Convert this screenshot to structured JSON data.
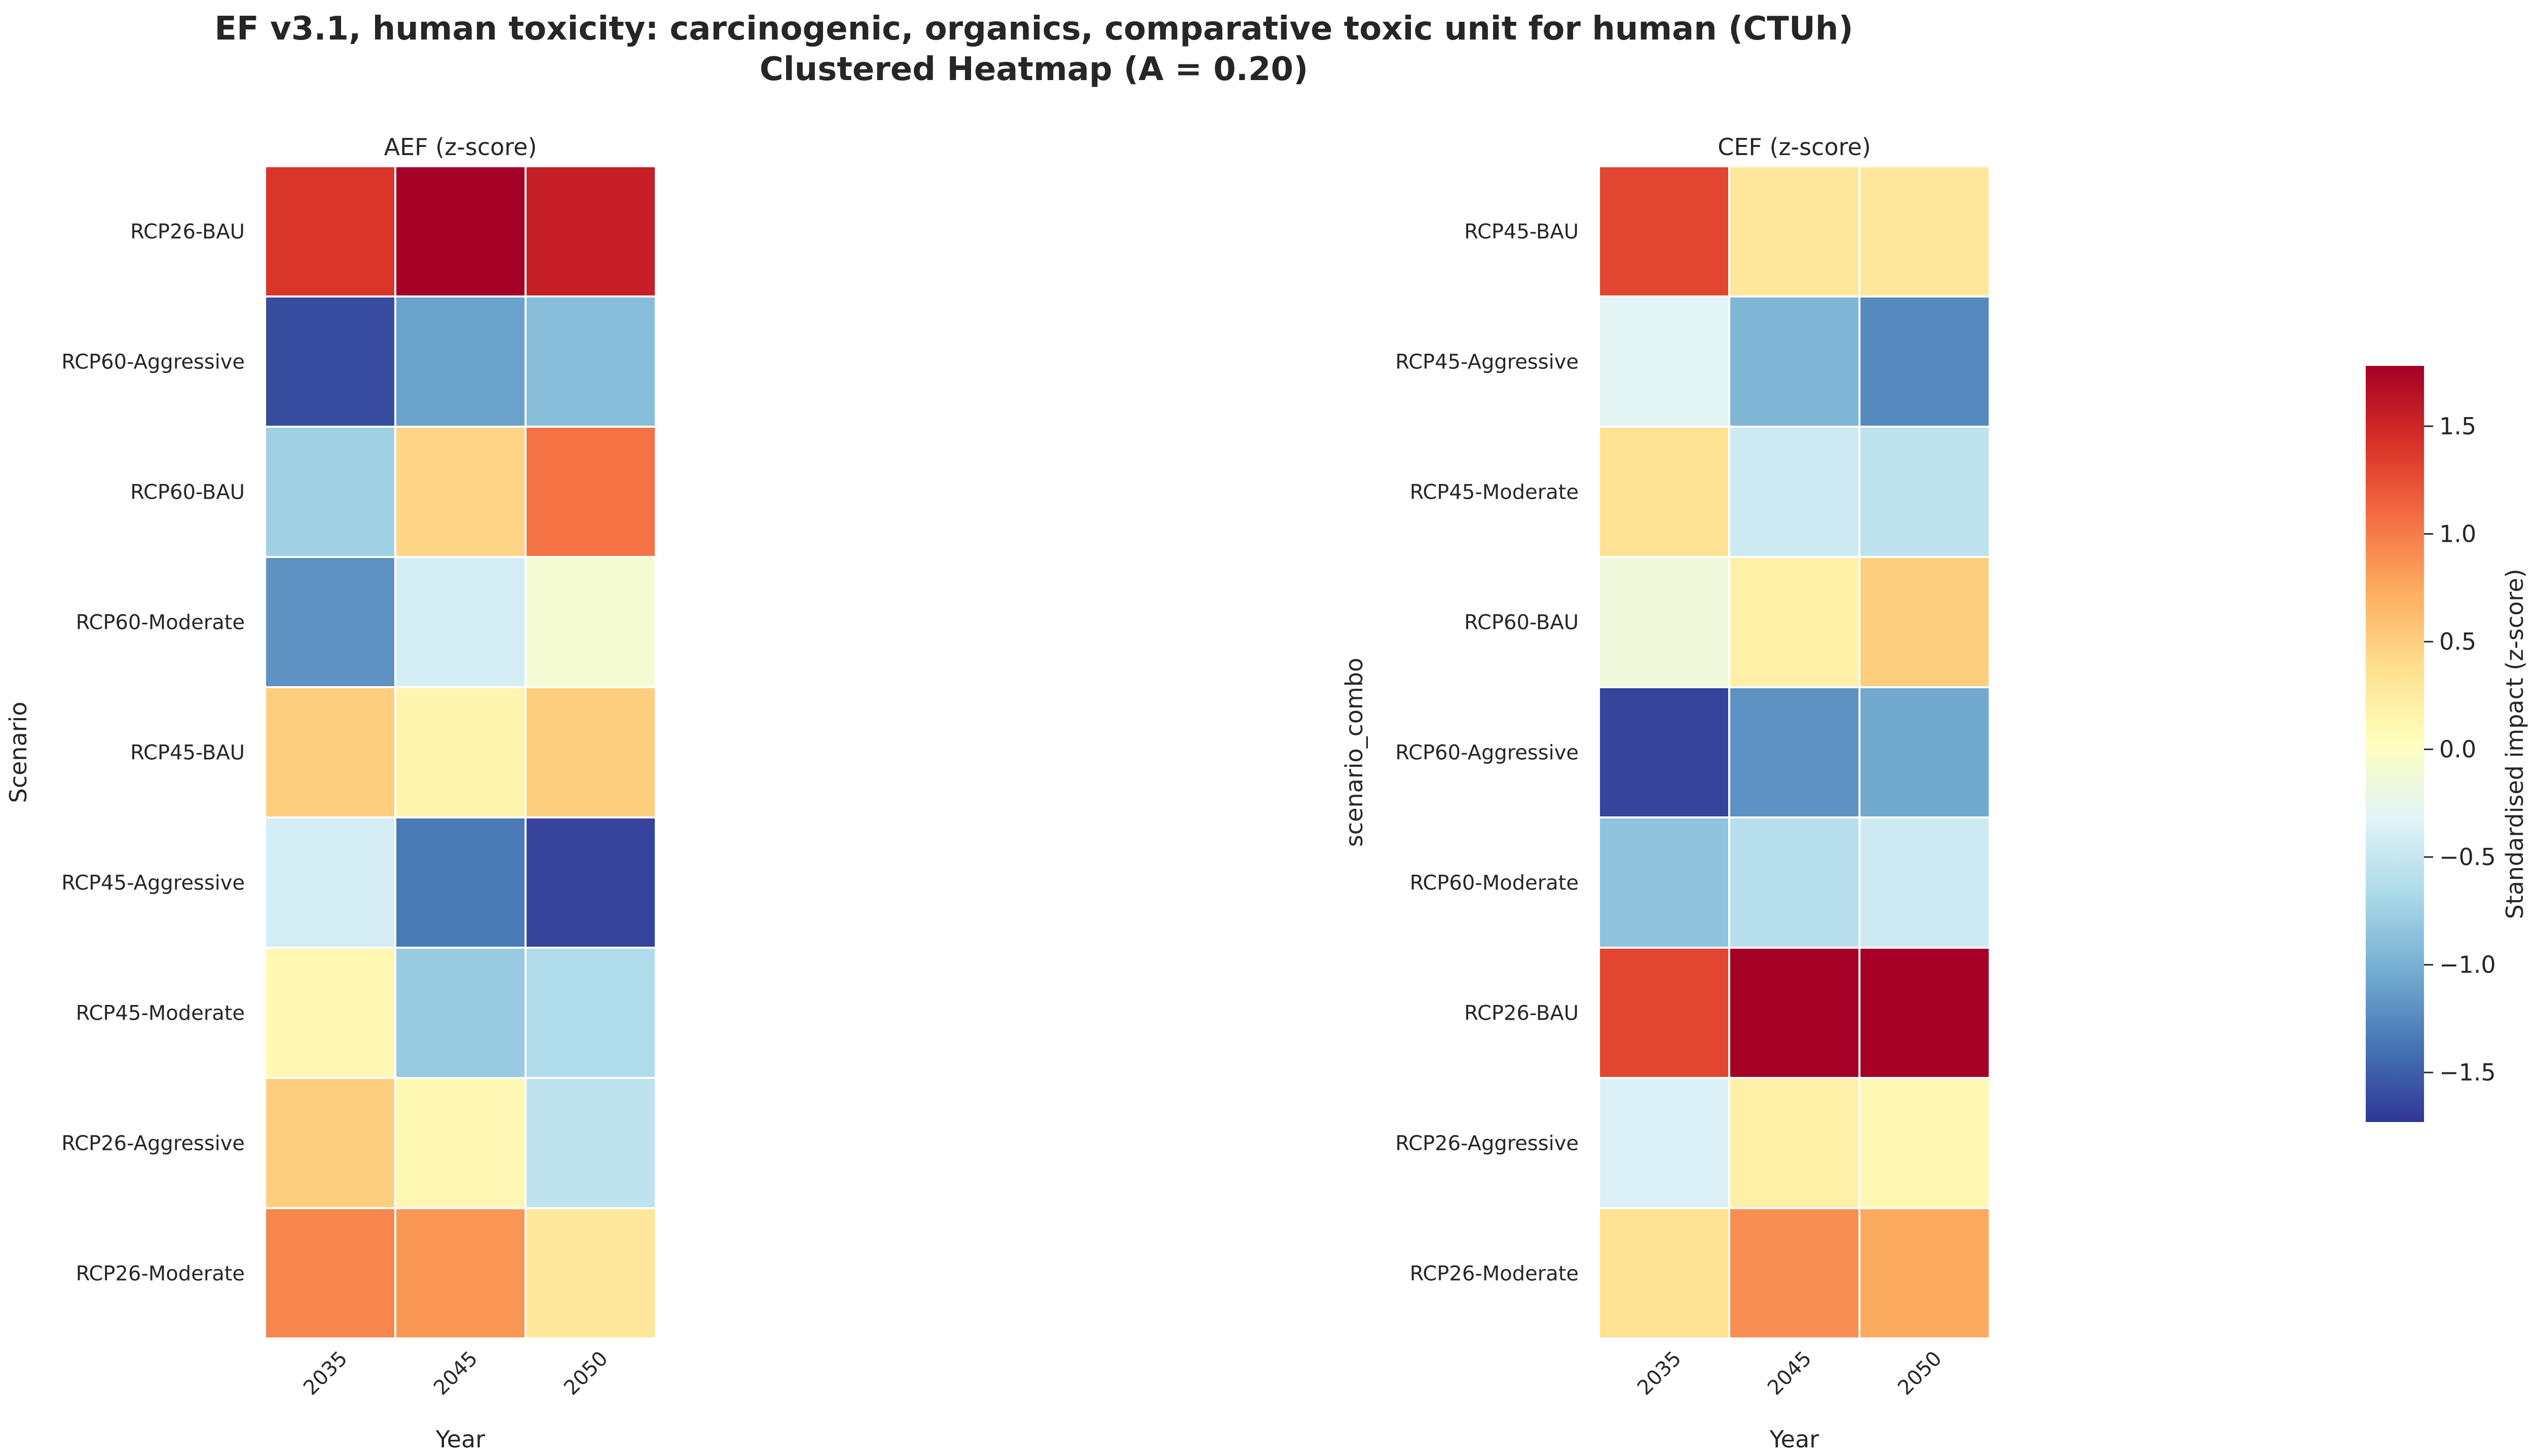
{
  "title_line1": "EF v3.1, human toxicity: carcinogenic, organics, comparative toxic unit for human (CTUh)",
  "title_line2": "Clustered Heatmap (A = 0.20)",
  "colorbar_label": "Standardised impact (z-score)",
  "colorbar_ticks": [
    "1.5",
    "1.0",
    "0.5",
    "0.0",
    "−0.5",
    "−1.0",
    "−1.5"
  ],
  "colors": {
    "colormap": "RdYlBu_r",
    "grid_line": "#ffffff"
  },
  "chart_data": [
    {
      "type": "heatmap",
      "title": "AEF (z-score)",
      "xlabel": "Year",
      "ylabel": "Scenario",
      "x": [
        "2035",
        "2045",
        "2050"
      ],
      "y": [
        "RCP26-BAU",
        "RCP60-Aggressive",
        "RCP60-BAU",
        "RCP60-Moderate",
        "RCP45-BAU",
        "RCP45-Aggressive",
        "RCP45-Moderate",
        "RCP26-Aggressive",
        "RCP26-Moderate"
      ],
      "values": [
        [
          1.4,
          1.78,
          1.55
        ],
        [
          -1.6,
          -1.1,
          -0.9
        ],
        [
          -0.75,
          0.45,
          1.05
        ],
        [
          -1.2,
          -0.4,
          -0.1
        ],
        [
          0.5,
          0.15,
          0.5
        ],
        [
          -0.4,
          -1.35,
          -1.65
        ],
        [
          0.1,
          -0.8,
          -0.65
        ],
        [
          0.5,
          0.1,
          -0.55
        ],
        [
          0.95,
          0.85,
          0.3
        ]
      ],
      "vmin": -1.73,
      "vmax": 1.78
    },
    {
      "type": "heatmap",
      "title": "CEF (z-score)",
      "xlabel": "Year",
      "ylabel": "scenario_combo",
      "x": [
        "2035",
        "2045",
        "2050"
      ],
      "y": [
        "RCP45-BAU",
        "RCP45-Aggressive",
        "RCP45-Moderate",
        "RCP60-BAU",
        "RCP60-Aggressive",
        "RCP60-Moderate",
        "RCP26-BAU",
        "RCP26-Aggressive",
        "RCP26-Moderate"
      ],
      "values": [
        [
          1.3,
          0.3,
          0.3
        ],
        [
          -0.3,
          -0.95,
          -1.25
        ],
        [
          0.35,
          -0.45,
          -0.55
        ],
        [
          -0.15,
          0.2,
          0.5
        ],
        [
          -1.65,
          -1.2,
          -1.05
        ],
        [
          -0.85,
          -0.6,
          -0.45
        ],
        [
          1.3,
          1.78,
          1.78
        ],
        [
          -0.35,
          0.2,
          0.1
        ],
        [
          0.35,
          0.9,
          0.75
        ]
      ],
      "vmin": -1.73,
      "vmax": 1.78
    }
  ]
}
